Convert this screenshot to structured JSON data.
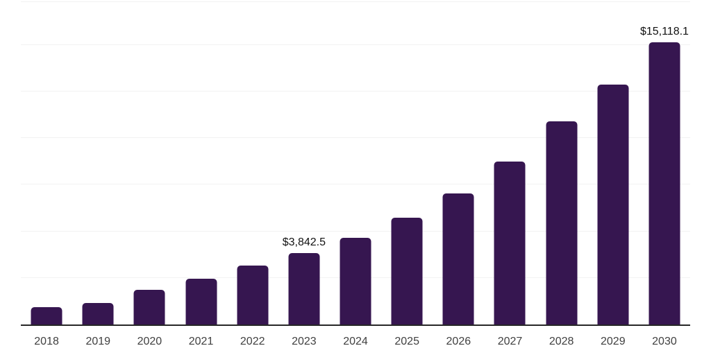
{
  "chart_data": {
    "type": "bar",
    "title": "",
    "xlabel": "",
    "ylabel": "",
    "categories": [
      "2018",
      "2019",
      "2020",
      "2021",
      "2022",
      "2023",
      "2024",
      "2025",
      "2026",
      "2027",
      "2028",
      "2029",
      "2030"
    ],
    "values": [
      930,
      1140,
      1850,
      2460,
      3170,
      3842.5,
      4645,
      5710,
      7020,
      8755,
      10910,
      12880,
      15118.1
    ],
    "data_labels": [
      "",
      "",
      "",
      "",
      "",
      "$3,842.5",
      "",
      "",
      "",
      "",
      "",
      "",
      "$15,118.1"
    ],
    "ylim": [
      0,
      17400
    ],
    "gridline_interval": 2500,
    "grid": "horizontal-only, no y-axis tick labels",
    "legend": "none",
    "bar_color": "#361650",
    "axis_line_color": "#262626",
    "gridline_color": "#f2f2f2",
    "tick_label_color": "#404040",
    "data_label_color": "#111111"
  }
}
